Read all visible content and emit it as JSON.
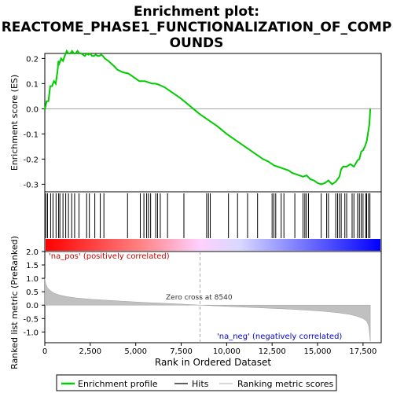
{
  "title_line1": "Enrichment plot:",
  "title_line2": "REACTOME_PHASE1_FUNCTIONALIZATION_OF_COMP",
  "title_line3": "OUNDS",
  "chart_data": {
    "type": "line",
    "top_panel": {
      "ylabel": "Enrichment score (ES)",
      "ylim": [
        -0.33,
        0.22
      ],
      "yticks": [
        "0.2",
        "0.1",
        "0.0",
        "-0.1",
        "-0.2",
        "-0.3"
      ],
      "ytick_values": [
        0.2,
        0.1,
        0.0,
        -0.1,
        -0.2,
        -0.3
      ],
      "line_color": "#00cc00",
      "es_curve": {
        "x": [
          0,
          100,
          200,
          300,
          400,
          500,
          600,
          700,
          750,
          800,
          900,
          1000,
          1100,
          1200,
          1300,
          1400,
          1500,
          1600,
          1700,
          1800,
          1900,
          2000,
          2100,
          2200,
          2300,
          2400,
          2500,
          2600,
          2700,
          2800,
          2900,
          3000,
          3100,
          3200,
          3300,
          3500,
          3800,
          4000,
          4300,
          4600,
          4900,
          5200,
          5500,
          5700,
          5900,
          6100,
          6300,
          6600,
          7000,
          7500,
          8000,
          8500,
          9000,
          9500,
          10000,
          10500,
          11000,
          11500,
          12000,
          12300,
          12600,
          12800,
          13000,
          13200,
          13400,
          13600,
          13800,
          14000,
          14200,
          14400,
          14600,
          14800,
          15000,
          15200,
          15400,
          15600,
          15800,
          16000,
          16200,
          16300,
          16400,
          16600,
          16800,
          17000,
          17200,
          17300,
          17400,
          17500,
          17600,
          17700,
          17800,
          17850,
          17900
        ],
        "y": [
          -0.005,
          0.03,
          0.03,
          0.09,
          0.09,
          0.11,
          0.1,
          0.15,
          0.19,
          0.18,
          0.2,
          0.19,
          0.21,
          0.23,
          0.22,
          0.22,
          0.23,
          0.22,
          0.22,
          0.23,
          0.22,
          0.22,
          0.215,
          0.21,
          0.22,
          0.215,
          0.22,
          0.21,
          0.21,
          0.215,
          0.21,
          0.21,
          0.215,
          0.21,
          0.2,
          0.19,
          0.17,
          0.155,
          0.145,
          0.14,
          0.125,
          0.11,
          0.11,
          0.105,
          0.1,
          0.1,
          0.095,
          0.085,
          0.065,
          0.04,
          0.01,
          -0.02,
          -0.045,
          -0.07,
          -0.1,
          -0.125,
          -0.15,
          -0.175,
          -0.2,
          -0.21,
          -0.225,
          -0.23,
          -0.235,
          -0.24,
          -0.245,
          -0.255,
          -0.26,
          -0.265,
          -0.27,
          -0.265,
          -0.28,
          -0.285,
          -0.295,
          -0.3,
          -0.295,
          -0.285,
          -0.3,
          -0.29,
          -0.27,
          -0.24,
          -0.23,
          -0.23,
          -0.22,
          -0.23,
          -0.205,
          -0.2,
          -0.17,
          -0.165,
          -0.15,
          -0.13,
          -0.085,
          -0.06,
          0.0
        ]
      }
    },
    "hits_panel": {
      "hit_positions": [
        60,
        150,
        320,
        450,
        620,
        760,
        830,
        1000,
        1150,
        1300,
        1480,
        1640,
        1880,
        2300,
        2450,
        2750,
        3050,
        3250,
        4550,
        5250,
        5450,
        5600,
        5700,
        5820,
        6100,
        6200,
        6350,
        6750,
        7650,
        8900,
        9000,
        9100,
        10100,
        10600,
        11150,
        11700,
        12500,
        12600,
        12700,
        13000,
        13150,
        13750,
        14200,
        14300,
        14380,
        14500,
        15200,
        15500,
        15600,
        16000,
        16100,
        16200,
        16300,
        16500,
        16600,
        16900,
        17000,
        17200,
        17300,
        17400,
        17500,
        17650,
        17700,
        17800,
        17880
      ],
      "gradient_start_color": "#ff0000",
      "gradient_end_color": "#0000ff"
    },
    "metric_panel": {
      "ylabel": "Ranked list metric (PreRanked)",
      "xlabel": "Rank in Ordered Dataset",
      "ylim": [
        -1.4,
        2.0
      ],
      "yticks": [
        "2.0",
        "1.5",
        "1.0",
        "0.5",
        "0.0",
        "-0.5",
        "-1.0"
      ],
      "ytick_values": [
        2.0,
        1.5,
        1.0,
        0.5,
        0.0,
        -0.5,
        -1.0
      ],
      "xlim": [
        0,
        18500
      ],
      "xticks": [
        "0",
        "2,500",
        "5,000",
        "7,500",
        "10,000",
        "12,500",
        "15,000",
        "17,500"
      ],
      "xtick_values": [
        0,
        2500,
        5000,
        7500,
        10000,
        12500,
        15000,
        17500
      ],
      "fill_color": "#c0c0c0",
      "metric_curve": {
        "x": [
          0,
          50,
          150,
          300,
          500,
          800,
          1200,
          1700,
          2500,
          3500,
          4500,
          5500,
          6500,
          7500,
          8540,
          9500,
          10500,
          11500,
          12500,
          13500,
          14500,
          15500,
          16200,
          16800,
          17200,
          17500,
          17700,
          17800,
          17850,
          17900
        ],
        "y": [
          1.0,
          0.8,
          0.65,
          0.55,
          0.45,
          0.38,
          0.32,
          0.27,
          0.22,
          0.18,
          0.14,
          0.1,
          0.07,
          0.04,
          0.0,
          -0.03,
          -0.06,
          -0.09,
          -0.12,
          -0.15,
          -0.19,
          -0.24,
          -0.29,
          -0.35,
          -0.42,
          -0.5,
          -0.6,
          -0.75,
          -1.0,
          -1.35
        ]
      },
      "zero_cross_label": "Zero cross at 8540",
      "zero_cross_value": 8540,
      "pos_label": "'na_pos' (positively correlated)",
      "neg_label": "'na_neg' (negatively correlated)"
    },
    "legend": [
      {
        "label": "Enrichment profile",
        "color": "#00cc00"
      },
      {
        "label": "Hits",
        "color": "#000000"
      },
      {
        "label": "Ranking metric scores",
        "color": "#c0c0c0"
      }
    ]
  }
}
